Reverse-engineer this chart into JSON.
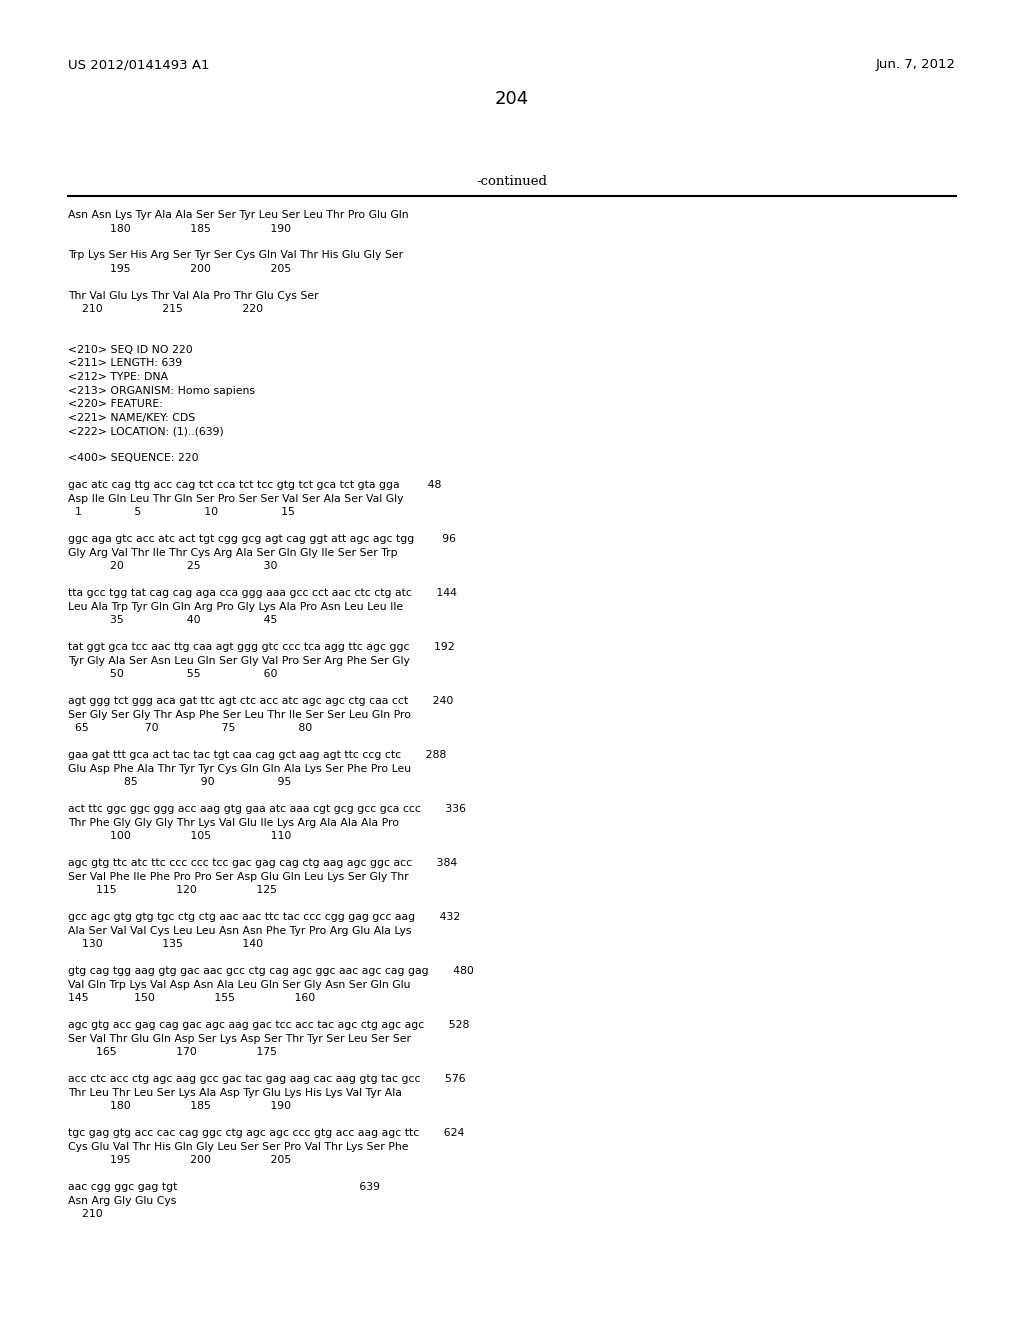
{
  "header_left": "US 2012/0141493 A1",
  "header_right": "Jun. 7, 2012",
  "page_number": "204",
  "continued_label": "-continued",
  "background_color": "#ffffff",
  "text_color": "#000000",
  "content": [
    "Asn Asn Lys Tyr Ala Ala Ser Ser Tyr Leu Ser Leu Thr Pro Glu Gln",
    "            180                 185                 190",
    "",
    "Trp Lys Ser His Arg Ser Tyr Ser Cys Gln Val Thr His Glu Gly Ser",
    "            195                 200                 205",
    "",
    "Thr Val Glu Lys Thr Val Ala Pro Thr Glu Cys Ser",
    "    210                 215                 220",
    "",
    "",
    "<210> SEQ ID NO 220",
    "<211> LENGTH: 639",
    "<212> TYPE: DNA",
    "<213> ORGANISM: Homo sapiens",
    "<220> FEATURE:",
    "<221> NAME/KEY: CDS",
    "<222> LOCATION: (1)..(639)",
    "",
    "<400> SEQUENCE: 220",
    "",
    "gac atc cag ttg acc cag tct cca tct tcc gtg tct gca tct gta gga        48",
    "Asp Ile Gln Leu Thr Gln Ser Pro Ser Ser Val Ser Ala Ser Val Gly",
    "  1               5                  10                  15",
    "",
    "ggc aga gtc acc atc act tgt cgg gcg agt cag ggt att agc agc tgg        96",
    "Gly Arg Val Thr Ile Thr Cys Arg Ala Ser Gln Gly Ile Ser Ser Trp",
    "            20                  25                  30",
    "",
    "tta gcc tgg tat cag cag aga cca ggg aaa gcc cct aac ctc ctg atc       144",
    "Leu Ala Trp Tyr Gln Gln Arg Pro Gly Lys Ala Pro Asn Leu Leu Ile",
    "            35                  40                  45",
    "",
    "tat ggt gca tcc aac ttg caa agt ggg gtc ccc tca agg ttc agc ggc       192",
    "Tyr Gly Ala Ser Asn Leu Gln Ser Gly Val Pro Ser Arg Phe Ser Gly",
    "            50                  55                  60",
    "",
    "agt ggg tct ggg aca gat ttc agt ctc acc atc agc agc ctg caa cct       240",
    "Ser Gly Ser Gly Thr Asp Phe Ser Leu Thr Ile Ser Ser Leu Gln Pro",
    "  65                70                  75                  80",
    "",
    "gaa gat ttt gca act tac tac tgt caa cag gct aag agt ttc ccg ctc       288",
    "Glu Asp Phe Ala Thr Tyr Tyr Cys Gln Gln Ala Lys Ser Phe Pro Leu",
    "                85                  90                  95",
    "",
    "act ttc ggc ggc ggg acc aag gtg gaa atc aaa cgt gcg gcc gca ccc       336",
    "Thr Phe Gly Gly Gly Thr Lys Val Glu Ile Lys Arg Ala Ala Ala Pro",
    "            100                 105                 110",
    "",
    "agc gtg ttc atc ttc ccc ccc tcc gac gag cag ctg aag agc ggc acc       384",
    "Ser Val Phe Ile Phe Pro Pro Ser Asp Glu Gln Leu Lys Ser Gly Thr",
    "        115                 120                 125",
    "",
    "gcc agc gtg gtg tgc ctg ctg aac aac ttc tac ccc cgg gag gcc aag       432",
    "Ala Ser Val Val Cys Leu Leu Asn Asn Phe Tyr Pro Arg Glu Ala Lys",
    "    130                 135                 140",
    "",
    "gtg cag tgg aag gtg gac aac gcc ctg cag agc ggc aac agc cag gag       480",
    "Val Gln Trp Lys Val Asp Asn Ala Leu Gln Ser Gly Asn Ser Gln Glu",
    "145             150                 155                 160",
    "",
    "agc gtg acc gag cag gac agc aag gac tcc acc tac agc ctg agc agc       528",
    "Ser Val Thr Glu Gln Asp Ser Lys Asp Ser Thr Tyr Ser Leu Ser Ser",
    "        165                 170                 175",
    "",
    "acc ctc acc ctg agc aag gcc gac tac gag aag cac aag gtg tac gcc       576",
    "Thr Leu Thr Leu Ser Lys Ala Asp Tyr Glu Lys His Lys Val Tyr Ala",
    "            180                 185                 190",
    "",
    "tgc gag gtg acc cac cag ggc ctg agc agc ccc gtg acc aag agc ttc       624",
    "Cys Glu Val Thr His Gln Gly Leu Ser Ser Pro Val Thr Lys Ser Phe",
    "            195                 200                 205",
    "",
    "aac cgg ggc gag tgt                                                    639",
    "Asn Arg Gly Glu Cys",
    "    210"
  ]
}
